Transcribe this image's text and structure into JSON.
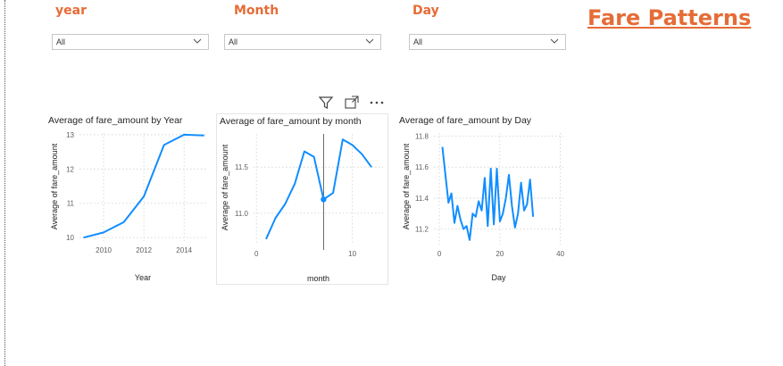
{
  "slicers": [
    {
      "title": "year",
      "value": "All"
    },
    {
      "title": "Month",
      "value": "All"
    },
    {
      "title": "Day",
      "value": "All"
    }
  ],
  "page_title": "Fare Patterns",
  "visual_header": {
    "icons": [
      "filter-icon",
      "focus-mode-icon",
      "more-options-icon"
    ]
  },
  "colors": {
    "accent": "#e66c37",
    "series": "#118dff"
  },
  "chart_data": [
    {
      "type": "line",
      "title": "Average of fare_amount by Year",
      "xlabel": "Year",
      "ylabel": "Average of fare_amount",
      "x": [
        2009,
        2010,
        2011,
        2012,
        2013,
        2014,
        2015
      ],
      "values": [
        10.0,
        10.15,
        10.45,
        11.2,
        12.7,
        13.0,
        12.98
      ],
      "xlim": [
        2008.8,
        2015.1
      ],
      "ylim": [
        9.9,
        13.05
      ],
      "xticks": [
        2010,
        2012,
        2014
      ],
      "yticks": [
        10,
        11,
        12,
        13
      ],
      "grid": true
    },
    {
      "type": "line",
      "title": "Average of fare_amount by month",
      "xlabel": "month",
      "ylabel": "Average of fare_amount",
      "x": [
        1,
        2,
        3,
        4,
        5,
        6,
        7,
        8,
        9,
        10,
        11,
        12
      ],
      "values": [
        10.72,
        10.95,
        11.1,
        11.32,
        11.67,
        11.61,
        11.15,
        11.22,
        11.8,
        11.74,
        11.64,
        11.5
      ],
      "xlim": [
        -0.3,
        13.2
      ],
      "ylim": [
        10.66,
        11.86
      ],
      "xticks": [
        0,
        10
      ],
      "yticks": [
        11.0,
        11.5
      ],
      "highlight_x": 7,
      "grid": true
    },
    {
      "type": "line",
      "title": "Average of fare_amount by Day",
      "xlabel": "Day",
      "ylabel": "Average of fare_amount",
      "x": [
        1,
        2,
        3,
        4,
        5,
        6,
        7,
        8,
        9,
        10,
        11,
        12,
        13,
        14,
        15,
        16,
        17,
        18,
        19,
        20,
        21,
        22,
        23,
        24,
        25,
        26,
        27,
        28,
        29,
        30,
        31
      ],
      "values": [
        11.73,
        11.55,
        11.37,
        11.43,
        11.24,
        11.35,
        11.26,
        11.2,
        11.22,
        11.13,
        11.3,
        11.28,
        11.38,
        11.32,
        11.53,
        11.22,
        11.59,
        11.23,
        11.59,
        11.25,
        11.3,
        11.4,
        11.55,
        11.35,
        11.21,
        11.3,
        11.5,
        11.32,
        11.36,
        11.52,
        11.28
      ],
      "xlim": [
        -1.8,
        41
      ],
      "ylim": [
        11.1,
        11.82
      ],
      "xticks": [
        0,
        20,
        40
      ],
      "yticks": [
        11.2,
        11.4,
        11.6,
        11.8
      ],
      "grid": true
    }
  ]
}
